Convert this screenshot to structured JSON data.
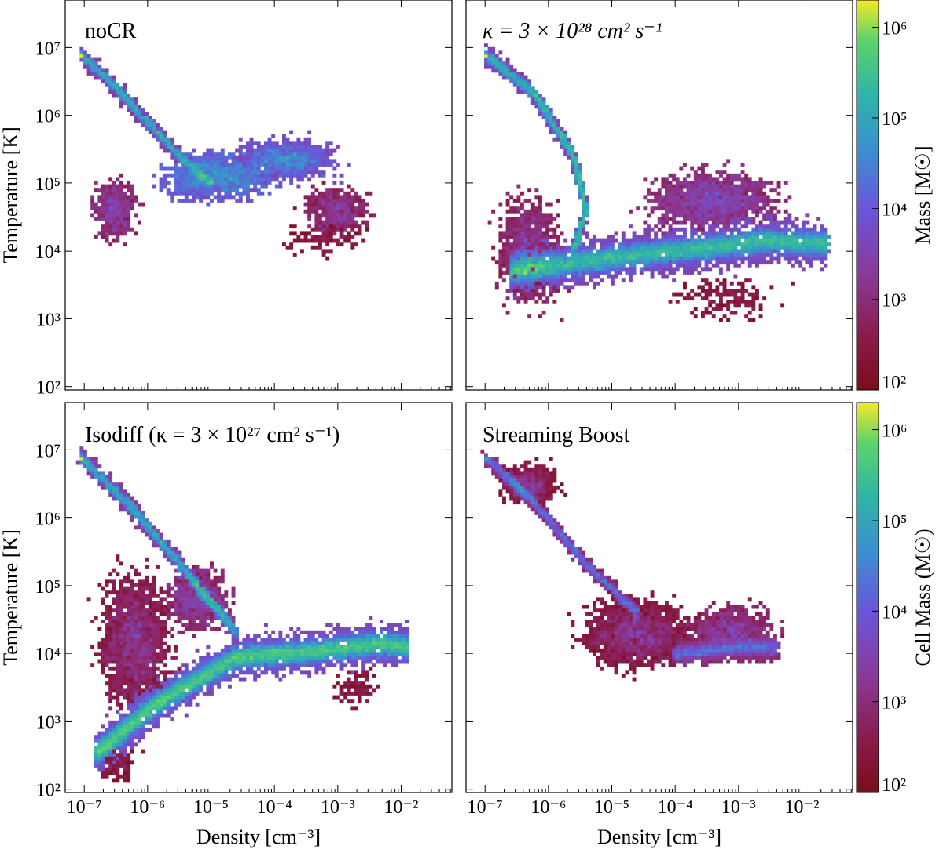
{
  "chart_data": [
    {
      "type": "heatmap",
      "panel": "top-left",
      "title": "noCR",
      "xlabel": "",
      "ylabel": "Temperature [K]",
      "x_scale": "log",
      "y_scale": "log",
      "xlim_log10": [
        -7.3,
        -1.2
      ],
      "ylim_log10": [
        1.95,
        7.7
      ],
      "x_ticks": [],
      "x_tick_labels": [],
      "y_ticks": [
        2,
        3,
        4,
        5,
        6,
        7
      ],
      "y_tick_labels": [
        "10²",
        "10³",
        "10⁴",
        "10⁵",
        "10⁶",
        "10⁷"
      ],
      "features": [
        {
          "kind": "hot_track",
          "points": [
            [
              -7.05,
              6.9
            ],
            [
              -6.5,
              6.4
            ],
            [
              -5.5,
              5.4
            ],
            [
              -5.0,
              5.0
            ]
          ],
          "level": 0.55,
          "width": 0.08
        },
        {
          "kind": "cloud",
          "center": [
            -4.9,
            5.1
          ],
          "spread": [
            0.9,
            0.35
          ],
          "level": 0.35,
          "density": 220
        },
        {
          "kind": "cloud",
          "center": [
            -6.5,
            4.6
          ],
          "spread": [
            0.35,
            0.45
          ],
          "level": 0.12,
          "density": 90
        },
        {
          "kind": "cloud",
          "center": [
            -3.8,
            5.35
          ],
          "spread": [
            0.8,
            0.3
          ],
          "level": 0.3,
          "density": 200
        },
        {
          "kind": "cloud",
          "center": [
            -3.0,
            4.6
          ],
          "spread": [
            0.5,
            0.35
          ],
          "level": 0.1,
          "density": 90
        },
        {
          "kind": "sparse",
          "center": [
            -3.2,
            4.2
          ],
          "spread": [
            0.7,
            0.25
          ],
          "level": 0.02,
          "density": 40
        }
      ]
    },
    {
      "type": "heatmap",
      "panel": "top-right",
      "title": "κ = 3 × 10²⁸ cm² s⁻¹",
      "xlabel": "",
      "ylabel": "",
      "x_scale": "log",
      "y_scale": "log",
      "xlim_log10": [
        -7.3,
        -1.2
      ],
      "ylim_log10": [
        1.95,
        7.7
      ],
      "x_ticks": [],
      "x_tick_labels": [],
      "y_ticks": [],
      "y_tick_labels": [],
      "features": [
        {
          "kind": "hot_track",
          "points": [
            [
              -7.0,
              6.9
            ],
            [
              -6.2,
              6.3
            ],
            [
              -5.6,
              5.4
            ],
            [
              -5.4,
              4.6
            ],
            [
              -5.6,
              4.0
            ]
          ],
          "level": 0.6,
          "width": 0.1
        },
        {
          "kind": "band",
          "points": [
            [
              -6.6,
              3.7
            ],
            [
              -5.0,
              3.9
            ],
            [
              -3.5,
              4.05
            ],
            [
              -2.5,
              4.15
            ],
            [
              -1.6,
              4.1
            ]
          ],
          "level": 0.65,
          "width": 0.22
        },
        {
          "kind": "cloud",
          "center": [
            -6.3,
            4.0
          ],
          "spread": [
            0.5,
            0.8
          ],
          "level": 0.1,
          "density": 180
        },
        {
          "kind": "cloud",
          "center": [
            -3.4,
            4.75
          ],
          "spread": [
            1.0,
            0.45
          ],
          "level": 0.15,
          "density": 240
        },
        {
          "kind": "sparse",
          "center": [
            -3.2,
            3.3
          ],
          "spread": [
            0.9,
            0.35
          ],
          "level": 0.02,
          "density": 60
        }
      ]
    },
    {
      "type": "heatmap",
      "panel": "bottom-left",
      "title": "Isodiff (κ = 3 × 10²⁷ cm² s⁻¹)",
      "xlabel": "Density [cm⁻³]",
      "ylabel": "Temperature [K]",
      "x_scale": "log",
      "y_scale": "log",
      "xlim_log10": [
        -7.3,
        -1.2
      ],
      "ylim_log10": [
        1.95,
        7.7
      ],
      "x_ticks": [
        -7,
        -6,
        -5,
        -4,
        -3,
        -2
      ],
      "x_tick_labels": [
        "10⁻⁷",
        "10⁻⁶",
        "10⁻⁵",
        "10⁻⁴",
        "10⁻³",
        "10⁻²"
      ],
      "y_ticks": [
        2,
        3,
        4,
        5,
        6,
        7
      ],
      "y_tick_labels": [
        "10²",
        "10³",
        "10⁴",
        "10⁵",
        "10⁶",
        "10⁷"
      ],
      "features": [
        {
          "kind": "hot_track",
          "points": [
            [
              -7.05,
              6.9
            ],
            [
              -6.3,
              6.2
            ],
            [
              -5.4,
              5.2
            ],
            [
              -4.6,
              4.3
            ]
          ],
          "level": 0.55,
          "width": 0.09
        },
        {
          "kind": "band",
          "points": [
            [
              -6.8,
              2.55
            ],
            [
              -5.8,
              3.3
            ],
            [
              -4.6,
              3.95
            ],
            [
              -3.2,
              4.05
            ],
            [
              -2.3,
              4.15
            ],
            [
              -1.9,
              4.1
            ]
          ],
          "level": 0.7,
          "width": 0.2
        },
        {
          "kind": "cloud",
          "center": [
            -6.2,
            4.2
          ],
          "spread": [
            0.55,
            1.0
          ],
          "level": 0.05,
          "density": 320
        },
        {
          "kind": "cloud",
          "center": [
            -5.2,
            4.8
          ],
          "spread": [
            0.5,
            0.45
          ],
          "level": 0.12,
          "density": 140
        },
        {
          "kind": "sparse",
          "center": [
            -6.5,
            2.4
          ],
          "spread": [
            0.35,
            0.3
          ],
          "level": 0.01,
          "density": 50
        },
        {
          "kind": "sparse",
          "center": [
            -2.7,
            3.5
          ],
          "spread": [
            0.35,
            0.3
          ],
          "level": 0.02,
          "density": 30
        }
      ]
    },
    {
      "type": "heatmap",
      "panel": "bottom-right",
      "title": "Streaming Boost",
      "xlabel": "Density [cm⁻³]",
      "ylabel": "",
      "x_scale": "log",
      "y_scale": "log",
      "xlim_log10": [
        -7.3,
        -1.2
      ],
      "ylim_log10": [
        1.95,
        7.7
      ],
      "x_ticks": [
        -7,
        -6,
        -5,
        -4,
        -3,
        -2
      ],
      "x_tick_labels": [
        "10⁻⁷",
        "10⁻⁶",
        "10⁻⁵",
        "10⁻⁴",
        "10⁻³",
        "10⁻²"
      ],
      "y_ticks": [],
      "y_tick_labels": [],
      "features": [
        {
          "kind": "hot_track",
          "points": [
            [
              -7.0,
              6.9
            ],
            [
              -6.2,
              6.2
            ],
            [
              -5.3,
              5.2
            ],
            [
              -4.6,
              4.6
            ]
          ],
          "level": 0.35,
          "width": 0.07
        },
        {
          "kind": "cloud",
          "center": [
            -6.3,
            6.5
          ],
          "spread": [
            0.45,
            0.3
          ],
          "level": 0.02,
          "density": 110
        },
        {
          "kind": "cloud",
          "center": [
            -4.6,
            4.3
          ],
          "spread": [
            0.85,
            0.5
          ],
          "level": 0.03,
          "density": 320
        },
        {
          "kind": "cloud",
          "center": [
            -3.1,
            4.3
          ],
          "spread": [
            0.7,
            0.4
          ],
          "level": 0.1,
          "density": 160
        },
        {
          "kind": "band",
          "points": [
            [
              -4.0,
              4.0
            ],
            [
              -3.0,
              4.1
            ],
            [
              -2.4,
              4.1
            ]
          ],
          "level": 0.35,
          "width": 0.12
        }
      ]
    }
  ],
  "colorbars": [
    {
      "label": "Mass [M☉]",
      "vmin_log10": 2,
      "vmax_log10": 6.3,
      "ticks": [
        2,
        3,
        4,
        5,
        6
      ],
      "tick_labels": [
        "10²",
        "10³",
        "10⁴",
        "10⁵",
        "10⁶"
      ],
      "colormap": "viridis_reversed_magma_blend"
    },
    {
      "label": "Cell Mass (M☉)",
      "vmin_log10": 2,
      "vmax_log10": 6.3,
      "ticks": [
        2,
        3,
        4,
        5,
        6
      ],
      "tick_labels": [
        "10²",
        "10³",
        "10⁴",
        "10⁵",
        "10⁶"
      ],
      "colormap": "viridis_reversed_magma_blend"
    }
  ],
  "colors": {
    "stops": [
      "#7a0d1a",
      "#8a1c4c",
      "#8a3a9a",
      "#6a55d8",
      "#3b90d0",
      "#2fb5a6",
      "#5fd36a",
      "#f7e926"
    ]
  }
}
